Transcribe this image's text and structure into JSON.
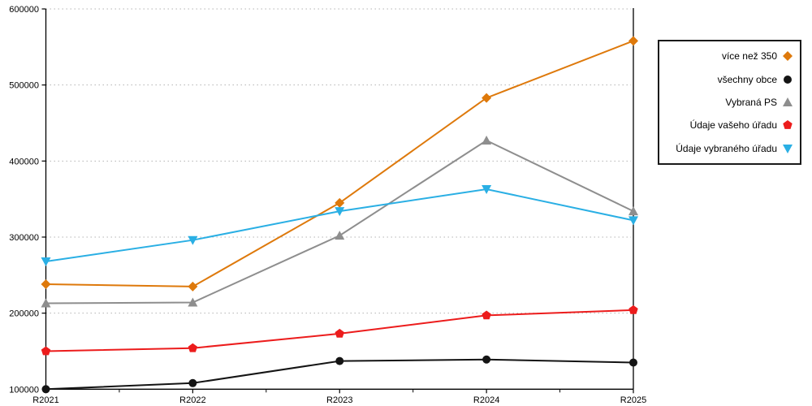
{
  "chart_data": {
    "type": "line",
    "categories": [
      "R2021",
      "R2022",
      "R2023",
      "R2024",
      "R2025"
    ],
    "series": [
      {
        "name": "více než 350",
        "color": "#de790b",
        "marker": "diamond",
        "values": [
          238000,
          235000,
          345000,
          483000,
          558000
        ]
      },
      {
        "name": "všechny obce",
        "color": "#141414",
        "marker": "circle",
        "values": [
          100000,
          108000,
          137000,
          139000,
          135000
        ]
      },
      {
        "name": "Vybraná PS",
        "color": "#8e8e8e",
        "marker": "triangle-up",
        "values": [
          213000,
          214000,
          302000,
          427000,
          334000
        ]
      },
      {
        "name": "Údaje vašeho úřadu",
        "color": "#ec1c1c",
        "marker": "pentagon",
        "values": [
          150000,
          154000,
          173000,
          197000,
          204000
        ]
      },
      {
        "name": "Údaje vybraného úřadu",
        "color": "#2aafe4",
        "marker": "triangle-down",
        "values": [
          268000,
          296000,
          334000,
          363000,
          322000
        ]
      }
    ],
    "ylim": [
      100000,
      600000
    ],
    "y_ticks": [
      100000,
      200000,
      300000,
      400000,
      500000,
      600000
    ],
    "grid": "dotted-horizontal",
    "legend_position": "right",
    "title": "",
    "xlabel": "",
    "ylabel": ""
  },
  "colors": {
    "background": "#ffffff",
    "axis": "#000000",
    "gridline": "#b3b3b3",
    "tick_label": "#000000"
  }
}
